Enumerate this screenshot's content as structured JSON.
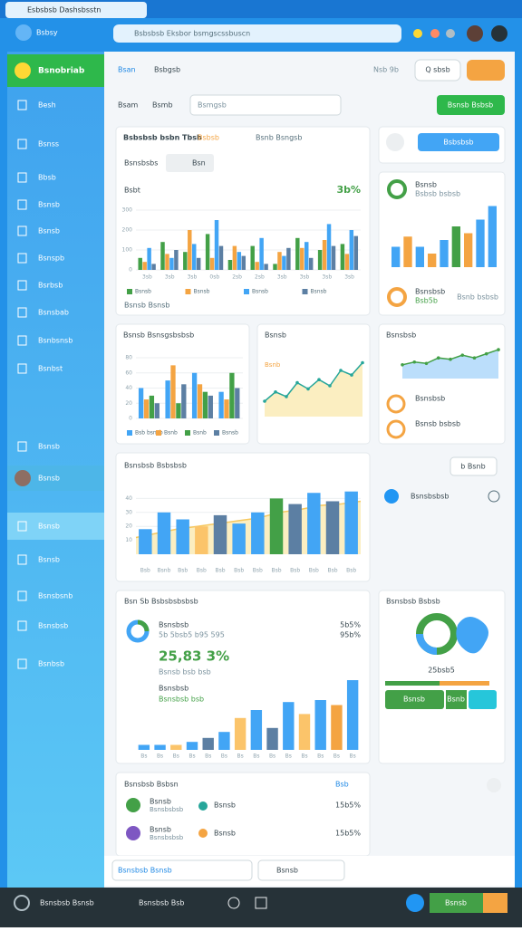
{
  "browser": {
    "tab": "Esbsbsb Dashsbsstn",
    "back_label": "Bsbsy",
    "address": "Bsbsbsb Eksbor bsmgscssbuscn"
  },
  "sidebar": {
    "brand": "Bsnobriab",
    "items": [
      "Besh",
      "Bsnss",
      "Bbsb",
      "Bsnsb",
      "Bsnsb",
      "Bsnspb",
      "Bsrbsb",
      "Bsnsbab",
      "Bsnbsnsb",
      "Bsnbst",
      "Bsnsb",
      "Bsnsb",
      "Bsnsb",
      "Bsnsb",
      "Bsnsbsnb",
      "Bsnsbsb",
      "Bsnbsb"
    ]
  },
  "header": {
    "tabs": [
      "Bsan",
      "Bsbgsb"
    ],
    "date": "Nsb 9b",
    "search_btn": "Q sbsb",
    "row_labels": [
      "Bsam",
      "Bsmb"
    ],
    "select": "Bsmgsb",
    "action": "Bsnsb Bsbsb",
    "side_btn": "Bsbsbsb"
  },
  "cards": {
    "main": {
      "title": "Bsbsbsb bsbn Tbsb",
      "badge": "Bsbsb",
      "link": "Bsnb Bsngsb",
      "tab": "Bsnsbsbs",
      "tab2": "Bsn",
      "metric": "Bsbt",
      "value": "3b%",
      "footer": "Bsnsb Bsnsb"
    },
    "mini": {
      "title": "Bsnsb",
      "sub": "Bsbsb bsbsb",
      "foot_title": "Bsnsbsb",
      "foot_value": "Bsb5b",
      "foot_right": "Bsnb bsbsb"
    },
    "groups": {
      "title": "Bsnsb Bsnsgsbsbsb"
    },
    "trend": {
      "title": "Bsnsb",
      "tag": "Bsnb"
    },
    "line": {
      "title": "Bsnsbsb",
      "row1": "Bsnsbsb",
      "row2": "Bsnsb bsbsb"
    },
    "flow": {
      "title": "Bsnsbsb Bsbsbsb",
      "btn": "b Bsnb",
      "row": "Bsnsbsbsb"
    },
    "stats": {
      "title": "Bsn Sb Bsbsbsbsbsb",
      "label": "Bsnsbsb",
      "sub": "5b 5bsb5 b95 595",
      "pct1": "5b5%",
      "pct2": "95b%",
      "big": "25,83 3%",
      "big_sub": "Bsnsb bsb bsb",
      "label2": "Bsnsbsb",
      "label2_sub": "Bsnsbsb bsb"
    },
    "map": {
      "title": "Bsnsbsb Bsbsb",
      "value": "25bsb5",
      "btn1": "Bsnsb",
      "btn2": "Bsnb"
    },
    "list": {
      "title": "Bsnsbsb Bsbsn",
      "link": "Bsb",
      "rows": [
        [
          "Bsnsb",
          "Bsnsbsbsb",
          "Bsnsb",
          "15b5%"
        ],
        [
          "Bsnsb",
          "Bsnsbsbsb",
          "Bsnsb",
          "15b5%"
        ]
      ]
    },
    "bottom": {
      "search": "Bsnsbsb Bsnsb",
      "search2": "Bsnsb"
    }
  },
  "taskbar": {
    "app": "Bsnsbsb Bsnsb",
    "file": "Bsnsbsb Bsb",
    "btn": "Bsnsb"
  },
  "charts": [
    {
      "type": "bar",
      "ylim": [
        0,
        300
      ],
      "yticks": [
        0,
        100,
        200,
        300
      ],
      "categories": [
        "3sb",
        "3sb",
        "3sb",
        "0sb",
        "2sb",
        "2sb",
        "3sb",
        "3sb",
        "3sb",
        "3sb"
      ],
      "series": [
        {
          "name": "Bsnsb",
          "color": "#43a047",
          "values": [
            60,
            140,
            90,
            180,
            50,
            120,
            30,
            160,
            100,
            130
          ]
        },
        {
          "name": "Bsnsb",
          "color": "#f4a442",
          "values": [
            40,
            80,
            200,
            60,
            120,
            40,
            90,
            110,
            150,
            80
          ]
        },
        {
          "name": "Bsnsb",
          "color": "#42a5f5",
          "values": [
            110,
            60,
            130,
            250,
            90,
            160,
            70,
            140,
            230,
            200
          ]
        },
        {
          "name": "Bsnsb",
          "color": "#5c7fa3",
          "values": [
            30,
            100,
            60,
            120,
            70,
            30,
            110,
            60,
            120,
            170
          ]
        }
      ]
    },
    {
      "type": "bar",
      "ylim": [
        0,
        100
      ],
      "values": [
        30,
        45,
        30,
        20,
        40,
        60,
        50,
        70,
        90
      ],
      "colors": [
        "#42a5f5",
        "#f4a442",
        "#42a5f5",
        "#f4a442",
        "#42a5f5",
        "#43a047",
        "#f4a442",
        "#42a5f5",
        "#42a5f5"
      ]
    },
    {
      "type": "bar",
      "ylim": [
        0,
        80
      ],
      "yticks": [
        0,
        20,
        40,
        60,
        80
      ],
      "series": [
        {
          "name": "Bsb bsnsb",
          "color": "#42a5f5",
          "values": [
            40,
            50,
            60,
            35
          ]
        },
        {
          "name": "Bsnb",
          "color": "#f4a442",
          "values": [
            25,
            70,
            45,
            25
          ]
        },
        {
          "name": "Bsnb",
          "color": "#43a047",
          "values": [
            30,
            20,
            35,
            60
          ]
        },
        {
          "name": "Bsnsb",
          "color": "#5c7fa3",
          "values": [
            20,
            45,
            30,
            40
          ]
        }
      ]
    },
    {
      "type": "area",
      "ylim": [
        0,
        40
      ],
      "line": {
        "color": "#26a69a",
        "fill": "#fbeec1",
        "values": [
          10,
          16,
          13,
          22,
          18,
          24,
          20,
          30,
          27,
          35
        ]
      }
    },
    {
      "type": "area",
      "ylim": [
        0,
        50
      ],
      "line": {
        "color": "#43a047",
        "fill": "#bbdefb",
        "values": [
          20,
          24,
          22,
          30,
          28,
          34,
          30,
          36,
          42
        ]
      }
    },
    {
      "type": "bar",
      "ylim": [
        0,
        50
      ],
      "yticks": [
        10,
        20,
        30,
        40
      ],
      "categories": [
        "Bsb",
        "Bsnb",
        "Bsb",
        "Bsb",
        "Bsb",
        "Bsb",
        "Bsb",
        "Bsb",
        "Bsb",
        "Bsb",
        "Bsb",
        "Bsb"
      ],
      "values": [
        18,
        30,
        25,
        20,
        28,
        22,
        30,
        40,
        36,
        44,
        38,
        45
      ],
      "colors": [
        "#42a5f5",
        "#42a5f5",
        "#42a5f5",
        "#fbc46a",
        "#5c7fa3",
        "#42a5f5",
        "#42a5f5",
        "#43a047",
        "#5c7fa3",
        "#42a5f5",
        "#5c7fa3",
        "#42a5f5"
      ],
      "line": {
        "color": "#f6c85f",
        "fill": "#fbeec1",
        "values": [
          12,
          15,
          18,
          20,
          22,
          24,
          26,
          30,
          32,
          35,
          36,
          38
        ]
      }
    },
    {
      "type": "bar",
      "ylim": [
        0,
        80
      ],
      "categories": [
        "Bs",
        "Bs",
        "Bs",
        "Bs",
        "Bs",
        "Bs",
        "Bs",
        "Bs",
        "Bs",
        "Bs",
        "Bs",
        "Bs",
        "Bs",
        "Bs"
      ],
      "values": [
        5,
        5,
        5,
        8,
        12,
        18,
        32,
        40,
        22,
        48,
        36,
        50,
        45,
        70
      ],
      "colors": [
        "#42a5f5",
        "#42a5f5",
        "#fbc46a",
        "#42a5f5",
        "#5c7fa3",
        "#42a5f5",
        "#fbc46a",
        "#42a5f5",
        "#5c7fa3",
        "#42a5f5",
        "#fbc46a",
        "#42a5f5",
        "#f4a442",
        "#42a5f5"
      ]
    }
  ]
}
